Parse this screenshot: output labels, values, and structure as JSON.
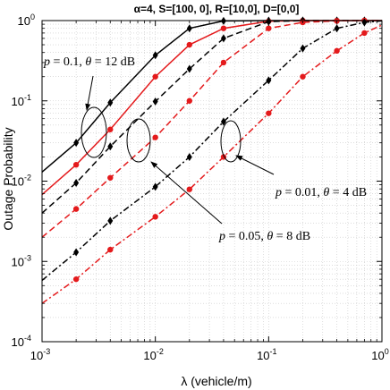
{
  "chart_data": {
    "type": "line",
    "title": "α=4,  S=[100, 0], R=[10,0], D=[0,0]",
    "xlabel": "λ (vehicle/m)",
    "ylabel": "Outage Probability",
    "x_scale": "log",
    "y_scale": "log",
    "xlim": [
      0.001,
      1
    ],
    "ylim": [
      0.0001,
      1
    ],
    "grid": true,
    "x_ticks": [
      {
        "value": 0.001,
        "base": "10",
        "exp": "-3"
      },
      {
        "value": 0.01,
        "base": "10",
        "exp": "-2"
      },
      {
        "value": 0.1,
        "base": "10",
        "exp": "-1"
      },
      {
        "value": 1,
        "base": "10",
        "exp": "0"
      }
    ],
    "y_ticks": [
      {
        "value": 0.0001,
        "base": "10",
        "exp": "-4"
      },
      {
        "value": 0.001,
        "base": "10",
        "exp": "-3"
      },
      {
        "value": 0.01,
        "base": "10",
        "exp": "-2"
      },
      {
        "value": 0.1,
        "base": "10",
        "exp": "-1"
      },
      {
        "value": 1,
        "base": "10",
        "exp": "0"
      }
    ],
    "series": [
      {
        "color": "#000000",
        "dash": "solid",
        "marker": "diamond",
        "x": [
          0.001,
          0.002,
          0.004,
          0.01,
          0.02,
          0.04,
          0.1,
          0.2,
          0.4,
          0.7,
          1
        ],
        "y": [
          0.013,
          0.03,
          0.095,
          0.37,
          0.8,
          0.99,
          1,
          1,
          1,
          1,
          1
        ]
      },
      {
        "color": "#e41a1c",
        "dash": "solid",
        "marker": "circle",
        "x": [
          0.001,
          0.002,
          0.004,
          0.01,
          0.02,
          0.04,
          0.1,
          0.2,
          0.4,
          0.7,
          1
        ],
        "y": [
          0.0068,
          0.016,
          0.044,
          0.2,
          0.5,
          0.8,
          0.98,
          1,
          1,
          1,
          1
        ]
      },
      {
        "color": "#000000",
        "dash": "dashed",
        "marker": "diamond",
        "x": [
          0.001,
          0.002,
          0.004,
          0.01,
          0.02,
          0.04,
          0.1,
          0.2,
          0.4,
          0.7,
          1
        ],
        "y": [
          0.004,
          0.0095,
          0.027,
          0.098,
          0.25,
          0.6,
          0.97,
          1,
          1,
          1,
          1
        ]
      },
      {
        "color": "#e41a1c",
        "dash": "dashed",
        "marker": "circle",
        "x": [
          0.001,
          0.002,
          0.004,
          0.01,
          0.02,
          0.04,
          0.1,
          0.2,
          0.4,
          0.7,
          1
        ],
        "y": [
          0.002,
          0.0045,
          0.011,
          0.035,
          0.1,
          0.3,
          0.8,
          0.95,
          0.99,
          1,
          1
        ]
      },
      {
        "color": "#000000",
        "dash": "dashdot",
        "marker": "diamond",
        "x": [
          0.001,
          0.002,
          0.004,
          0.01,
          0.02,
          0.04,
          0.1,
          0.2,
          0.4,
          0.7,
          1
        ],
        "y": [
          0.00058,
          0.0013,
          0.0032,
          0.0085,
          0.02,
          0.055,
          0.18,
          0.45,
          0.8,
          0.95,
          0.99
        ]
      },
      {
        "color": "#e41a1c",
        "dash": "dashdot",
        "marker": "circle",
        "x": [
          0.001,
          0.002,
          0.004,
          0.01,
          0.02,
          0.04,
          0.1,
          0.2,
          0.4,
          0.7,
          1
        ],
        "y": [
          0.0003,
          0.0006,
          0.0014,
          0.0036,
          0.0079,
          0.02,
          0.07,
          0.2,
          0.42,
          0.7,
          0.88
        ]
      }
    ],
    "annotations": [
      {
        "p": "0.1",
        "theta": "12 dB"
      },
      {
        "p": "0.05",
        "theta": "8 dB"
      },
      {
        "p": "0.01",
        "theta": "4 dB"
      }
    ]
  }
}
